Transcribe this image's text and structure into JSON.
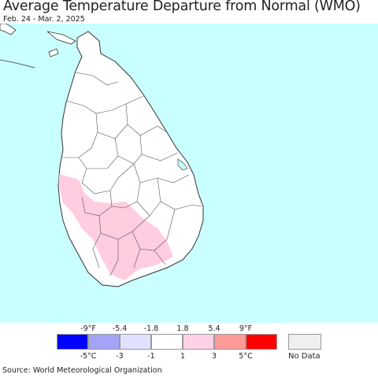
{
  "header": {
    "title": "Average Temperature Departure from Normal (WMO)",
    "subtitle": "Feb. 24 - Mar. 2, 2025"
  },
  "map": {
    "region": "Sri Lanka",
    "ocean_color": "#c9ffff",
    "land_color": "#ffffff",
    "border_color": "#333333",
    "anomaly_areas": [
      {
        "category": "1 to 3 °C",
        "color": "#ffcce0",
        "location": "southwest coast and south-central interior"
      }
    ]
  },
  "legend": {
    "fahrenheit_ticks": [
      "-9°F",
      "-5.4",
      "-1.8",
      "1.8",
      "5.4",
      "9°F"
    ],
    "celsius_ticks": [
      "-5°C",
      "-3",
      "-1",
      "1",
      "3",
      "5°C"
    ],
    "colors": [
      "#0000ff",
      "#a3a3f7",
      "#e1e1ff",
      "#ffffff",
      "#ffd1e6",
      "#ff9b9b",
      "#ff0000"
    ],
    "nodata_color": "#efefef",
    "nodata_label": "No Data"
  },
  "footer": {
    "source": "Source: World Meteorological Organization"
  }
}
